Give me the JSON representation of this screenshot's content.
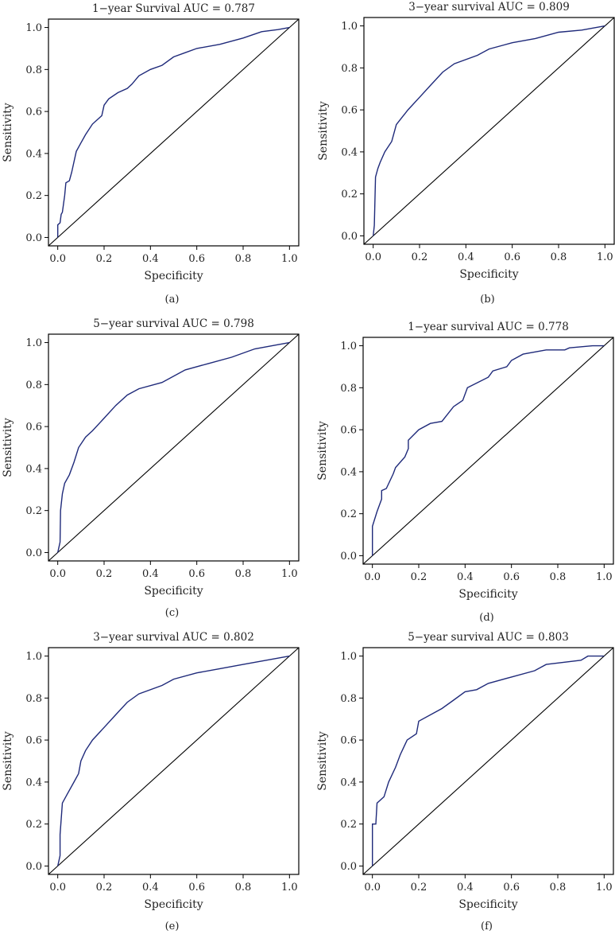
{
  "colors": {
    "curve": "#1f2a7a",
    "diagonal": "#000000",
    "frame": "#000000"
  },
  "chart_data": [
    {
      "type": "line",
      "caption": "(a)",
      "title": "1−year Survival AUC = 0.787",
      "xlabel": "Specificity",
      "ylabel": "Sensitivity",
      "xlim": [
        -0.04,
        1.04
      ],
      "ylim": [
        -0.04,
        1.04
      ],
      "xticks": [
        "0.0",
        "0.2",
        "0.4",
        "0.6",
        "0.8",
        "1.0"
      ],
      "yticks": [
        "0.0",
        "0.2",
        "0.4",
        "0.6",
        "0.8",
        "1.0"
      ],
      "x": [
        0,
        0,
        0.01,
        0.015,
        0.02,
        0.03,
        0.035,
        0.05,
        0.06,
        0.07,
        0.08,
        0.1,
        0.12,
        0.15,
        0.18,
        0.19,
        0.2,
        0.22,
        0.26,
        0.3,
        0.32,
        0.35,
        0.4,
        0.45,
        0.5,
        0.55,
        0.6,
        0.7,
        0.8,
        0.88,
        0.95,
        1
      ],
      "y": [
        0,
        0.06,
        0.07,
        0.11,
        0.12,
        0.2,
        0.26,
        0.27,
        0.31,
        0.36,
        0.41,
        0.45,
        0.49,
        0.54,
        0.57,
        0.58,
        0.63,
        0.66,
        0.69,
        0.71,
        0.73,
        0.77,
        0.8,
        0.82,
        0.86,
        0.88,
        0.9,
        0.92,
        0.95,
        0.98,
        0.99,
        1
      ]
    },
    {
      "type": "line",
      "caption": "(b)",
      "title": "3−year survival AUC = 0.809",
      "xlabel": "Specificity",
      "ylabel": "Sensitivity",
      "xlim": [
        -0.04,
        1.04
      ],
      "ylim": [
        -0.04,
        1.04
      ],
      "xticks": [
        "0.0",
        "0.2",
        "0.4",
        "0.6",
        "0.8",
        "1.0"
      ],
      "yticks": [
        "0.0",
        "0.2",
        "0.4",
        "0.6",
        "0.8",
        "1.0"
      ],
      "x": [
        0,
        0.005,
        0.01,
        0.02,
        0.03,
        0.05,
        0.08,
        0.1,
        0.15,
        0.2,
        0.25,
        0.3,
        0.35,
        0.45,
        0.5,
        0.6,
        0.7,
        0.8,
        0.9,
        1
      ],
      "y": [
        0,
        0.05,
        0.28,
        0.32,
        0.35,
        0.4,
        0.45,
        0.53,
        0.6,
        0.66,
        0.72,
        0.78,
        0.82,
        0.86,
        0.89,
        0.92,
        0.94,
        0.97,
        0.98,
        1
      ]
    },
    {
      "type": "line",
      "caption": "(c)",
      "title": "5−year survival AUC = 0.798",
      "xlabel": "Specificity",
      "ylabel": "Sensitivity",
      "xlim": [
        -0.04,
        1.04
      ],
      "ylim": [
        -0.04,
        1.04
      ],
      "xticks": [
        "0.0",
        "0.2",
        "0.4",
        "0.6",
        "0.8",
        "1.0"
      ],
      "yticks": [
        "0.0",
        "0.2",
        "0.4",
        "0.6",
        "0.8",
        "1.0"
      ],
      "x": [
        0,
        0.01,
        0.012,
        0.02,
        0.03,
        0.05,
        0.07,
        0.09,
        0.12,
        0.15,
        0.2,
        0.25,
        0.3,
        0.35,
        0.45,
        0.55,
        0.65,
        0.75,
        0.85,
        0.95,
        1
      ],
      "y": [
        0,
        0.05,
        0.2,
        0.28,
        0.33,
        0.37,
        0.43,
        0.5,
        0.55,
        0.58,
        0.64,
        0.7,
        0.75,
        0.78,
        0.81,
        0.87,
        0.9,
        0.93,
        0.97,
        0.99,
        1
      ]
    },
    {
      "type": "line",
      "caption": "(d)",
      "title": "1−year survival AUC = 0.778",
      "xlabel": "Specificity",
      "ylabel": "Sensitivity",
      "xlim": [
        -0.04,
        1.04
      ],
      "ylim": [
        -0.04,
        1.04
      ],
      "xticks": [
        "0.0",
        "0.2",
        "0.4",
        "0.6",
        "0.8",
        "1.0"
      ],
      "yticks": [
        "0.0",
        "0.2",
        "0.4",
        "0.6",
        "0.8",
        "1.0"
      ],
      "x": [
        0,
        0,
        0.02,
        0.04,
        0.04,
        0.06,
        0.09,
        0.1,
        0.14,
        0.155,
        0.155,
        0.2,
        0.25,
        0.3,
        0.35,
        0.39,
        0.41,
        0.5,
        0.52,
        0.58,
        0.6,
        0.65,
        0.75,
        0.83,
        0.85,
        0.95,
        1
      ],
      "y": [
        0,
        0.14,
        0.21,
        0.27,
        0.31,
        0.32,
        0.39,
        0.42,
        0.47,
        0.51,
        0.55,
        0.6,
        0.63,
        0.64,
        0.71,
        0.74,
        0.8,
        0.85,
        0.88,
        0.9,
        0.93,
        0.96,
        0.98,
        0.98,
        0.99,
        1,
        1
      ]
    },
    {
      "type": "line",
      "caption": "(e)",
      "title": "3−year survival AUC = 0.802",
      "xlabel": "Specificity",
      "ylabel": "Sensitivity",
      "xlim": [
        -0.04,
        1.04
      ],
      "ylim": [
        -0.04,
        1.04
      ],
      "xticks": [
        "0.0",
        "0.2",
        "0.4",
        "0.6",
        "0.8",
        "1.0"
      ],
      "yticks": [
        "0.0",
        "0.2",
        "0.4",
        "0.6",
        "0.8",
        "1.0"
      ],
      "x": [
        0,
        0.01,
        0.01,
        0.02,
        0.04,
        0.07,
        0.09,
        0.1,
        0.12,
        0.15,
        0.2,
        0.25,
        0.3,
        0.35,
        0.45,
        0.5,
        0.6,
        0.7,
        0.8,
        0.9,
        1
      ],
      "y": [
        0,
        0.05,
        0.15,
        0.3,
        0.34,
        0.4,
        0.44,
        0.5,
        0.55,
        0.6,
        0.66,
        0.72,
        0.78,
        0.82,
        0.86,
        0.89,
        0.92,
        0.94,
        0.96,
        0.98,
        1
      ]
    },
    {
      "type": "line",
      "caption": "(f)",
      "title": "5−year survival AUC = 0.803",
      "xlabel": "Specificity",
      "ylabel": "Sensitivity",
      "xlim": [
        -0.04,
        1.04
      ],
      "ylim": [
        -0.04,
        1.04
      ],
      "xticks": [
        "0.0",
        "0.2",
        "0.4",
        "0.6",
        "0.8",
        "1.0"
      ],
      "yticks": [
        "0.0",
        "0.2",
        "0.4",
        "0.6",
        "0.8",
        "1.0"
      ],
      "x": [
        0,
        0,
        0.015,
        0.02,
        0.05,
        0.07,
        0.1,
        0.12,
        0.15,
        0.19,
        0.2,
        0.3,
        0.35,
        0.4,
        0.45,
        0.5,
        0.6,
        0.7,
        0.75,
        0.9,
        0.93,
        1
      ],
      "y": [
        0,
        0.2,
        0.2,
        0.3,
        0.33,
        0.4,
        0.47,
        0.53,
        0.6,
        0.63,
        0.69,
        0.75,
        0.79,
        0.83,
        0.84,
        0.87,
        0.9,
        0.93,
        0.96,
        0.98,
        1,
        1
      ]
    }
  ]
}
